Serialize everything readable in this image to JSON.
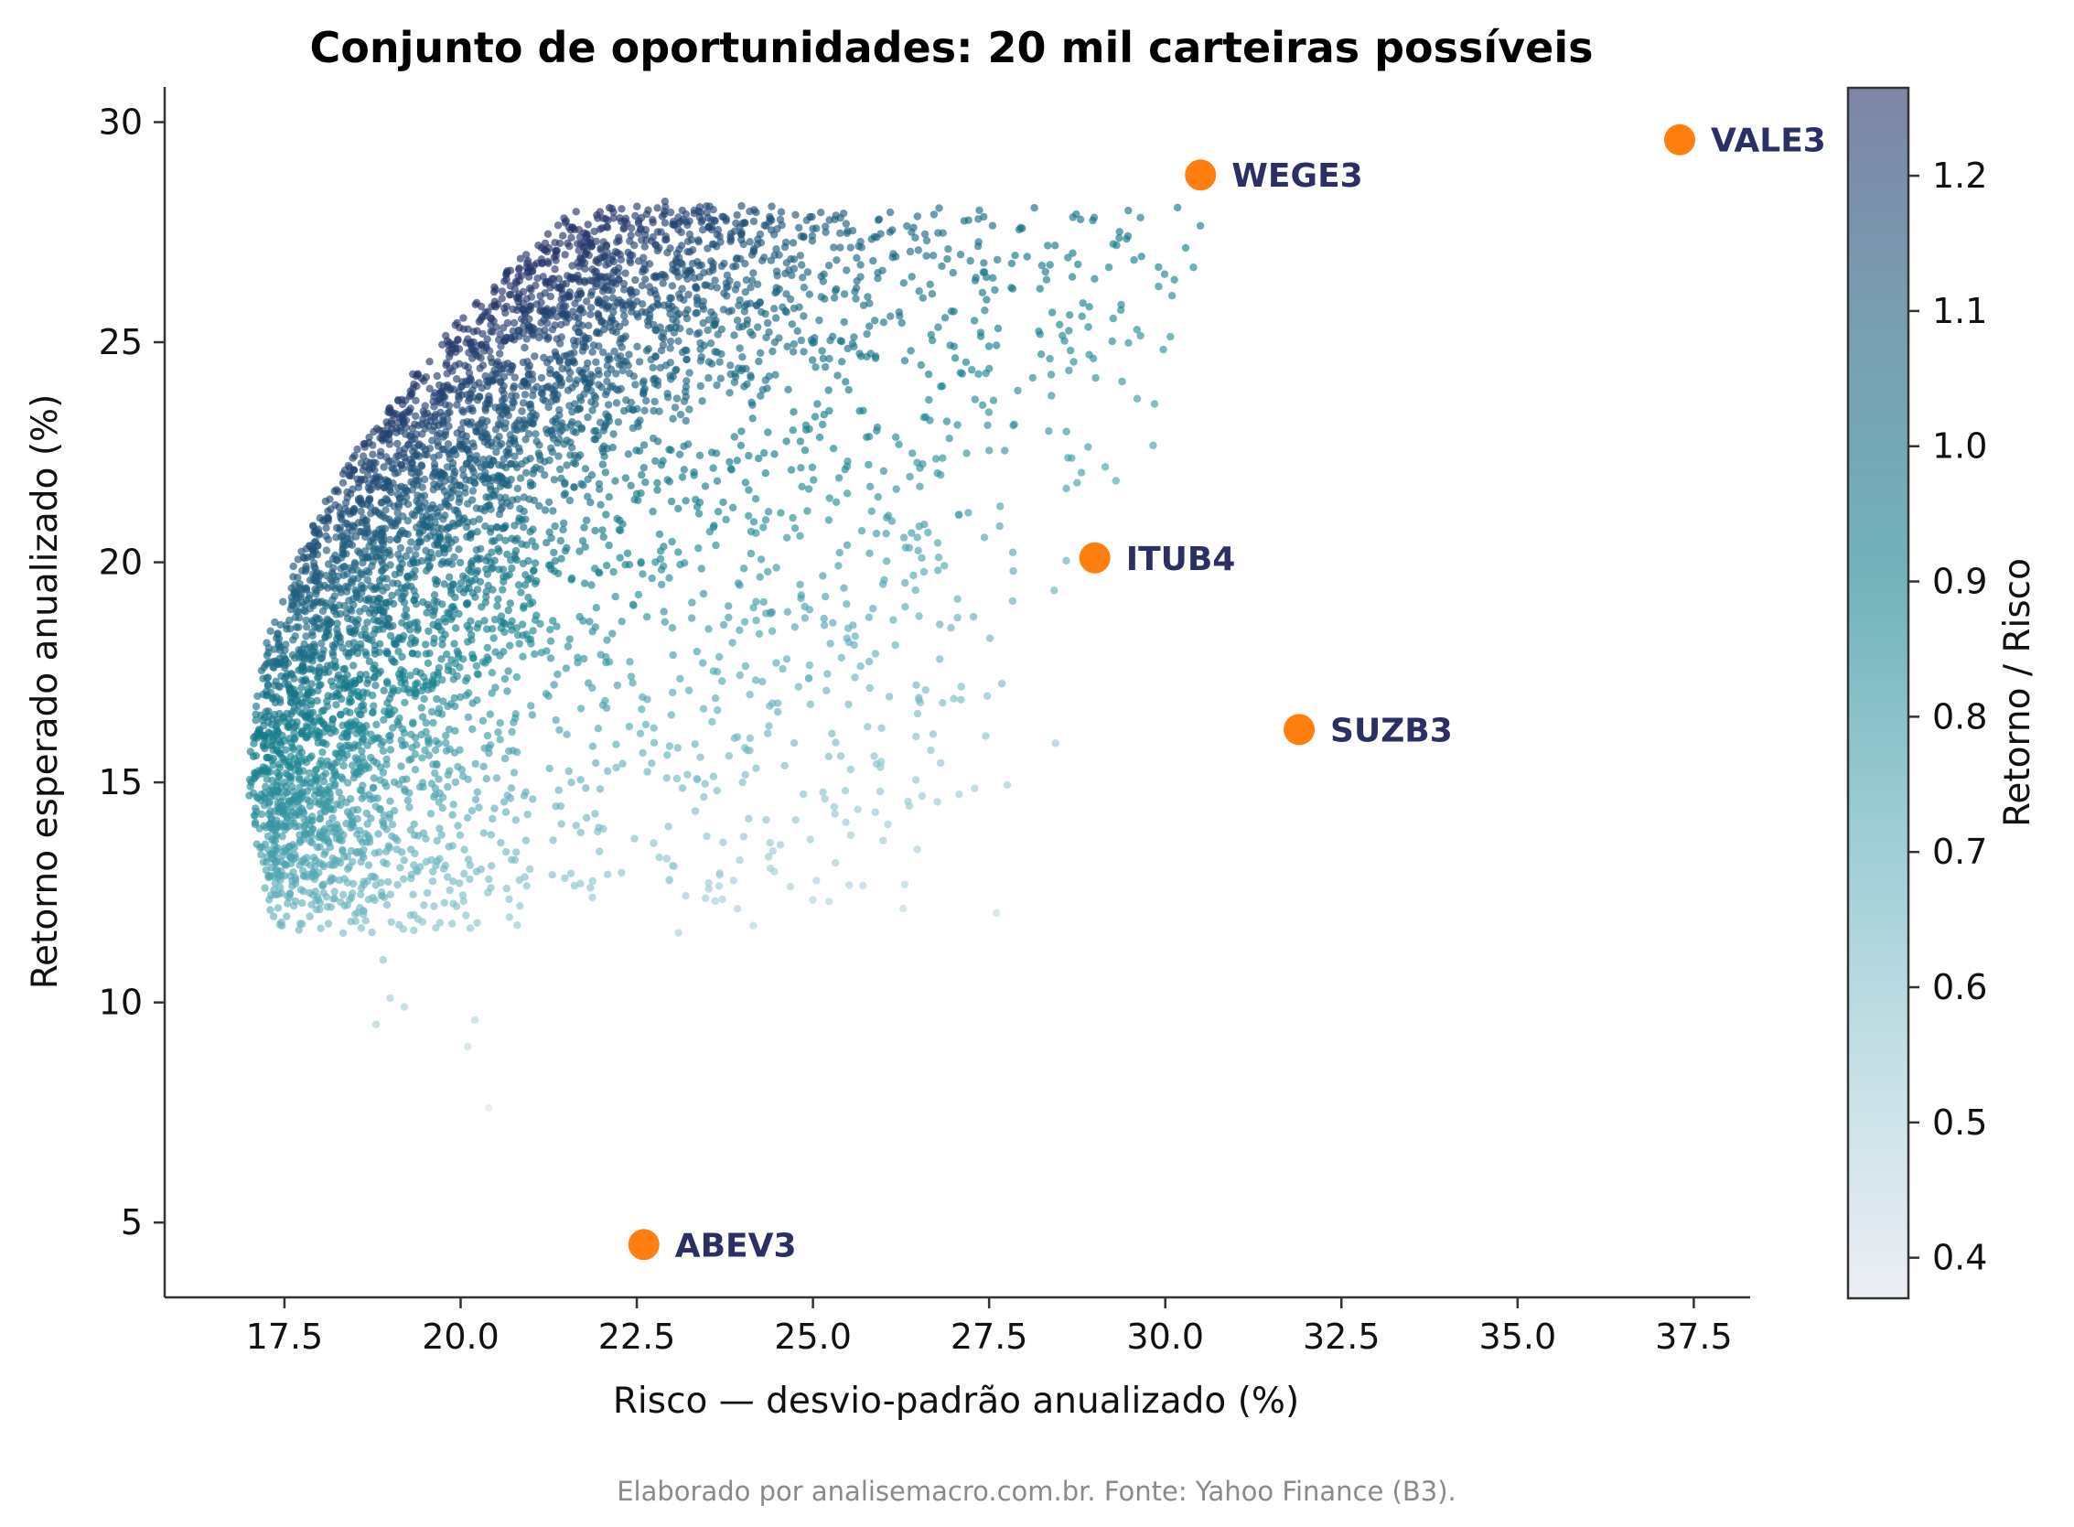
{
  "chart_data": {
    "type": "scatter",
    "title": "Conjunto de oportunidades: 20 mil carteiras possíveis",
    "xlabel": "Risco — desvio-padrão anualizado (%)",
    "ylabel": "Retorno esperado anualizado (%)",
    "xlim": [
      15.8,
      38.3
    ],
    "ylim": [
      3.3,
      30.8
    ],
    "xticks": [
      "17.5",
      "20.0",
      "22.5",
      "25.0",
      "27.5",
      "30.0",
      "32.5",
      "35.0",
      "37.5"
    ],
    "yticks": [
      "5",
      "10",
      "15",
      "20",
      "25",
      "30"
    ],
    "grid": false,
    "colorbar": {
      "label": "Retorno / Risco",
      "range": [
        0.37,
        1.265
      ],
      "ticks": [
        "0.4",
        "0.5",
        "0.6",
        "0.7",
        "0.8",
        "0.9",
        "1.0",
        "1.1",
        "1.2"
      ],
      "colors": [
        "#dfe4ee",
        "#9ccad4",
        "#57a9b6",
        "#147f8c",
        "#1e5f7f",
        "#27346a"
      ]
    },
    "portfolios": {
      "count": 20000,
      "shown_sample": [
        {
          "x": 22.9,
          "y": 28.2
        },
        {
          "x": 24.8,
          "y": 27.6
        },
        {
          "x": 26.4,
          "y": 27.5
        },
        {
          "x": 29.2,
          "y": 26.7
        },
        {
          "x": 30.4,
          "y": 26.7
        },
        {
          "x": 28.3,
          "y": 26.6
        },
        {
          "x": 28.5,
          "y": 25.4
        },
        {
          "x": 27.0,
          "y": 25.7
        },
        {
          "x": 27.5,
          "y": 24.4
        },
        {
          "x": 27.3,
          "y": 23.7
        },
        {
          "x": 26.9,
          "y": 23.2
        },
        {
          "x": 26.6,
          "y": 23.3
        },
        {
          "x": 25.5,
          "y": 18.5
        },
        {
          "x": 24.3,
          "y": 19.1
        },
        {
          "x": 26.8,
          "y": 17.8
        },
        {
          "x": 26.6,
          "y": 17.1
        },
        {
          "x": 27.0,
          "y": 16.9
        },
        {
          "x": 24.5,
          "y": 16.6
        },
        {
          "x": 24.0,
          "y": 15.0
        },
        {
          "x": 21.7,
          "y": 12.7
        },
        {
          "x": 21.3,
          "y": 12.9
        },
        {
          "x": 20.4,
          "y": 12.8
        },
        {
          "x": 19.2,
          "y": 9.9
        },
        {
          "x": 20.2,
          "y": 9.6
        },
        {
          "x": 20.1,
          "y": 9.0
        },
        {
          "x": 20.4,
          "y": 7.6
        },
        {
          "x": 18.8,
          "y": 9.5
        },
        {
          "x": 19.0,
          "y": 10.1
        },
        {
          "x": 17.3,
          "y": 12.1
        },
        {
          "x": 17.0,
          "y": 14.7
        },
        {
          "x": 17.2,
          "y": 17.0
        }
      ]
    },
    "assets": [
      {
        "name": "VALE3",
        "x": 37.3,
        "y": 29.6
      },
      {
        "name": "WEGE3",
        "x": 30.5,
        "y": 28.8
      },
      {
        "name": "ITUB4",
        "x": 29.0,
        "y": 20.1
      },
      {
        "name": "SUZB3",
        "x": 31.9,
        "y": 16.2
      },
      {
        "name": "ABEV3",
        "x": 22.6,
        "y": 4.5
      }
    ],
    "asset_marker_color": "#ff7f0e",
    "asset_label_color": "#2a2f66"
  },
  "footnote": "Elaborado por analisemacro.com.br. Fonte: Yahoo Finance (B3)."
}
